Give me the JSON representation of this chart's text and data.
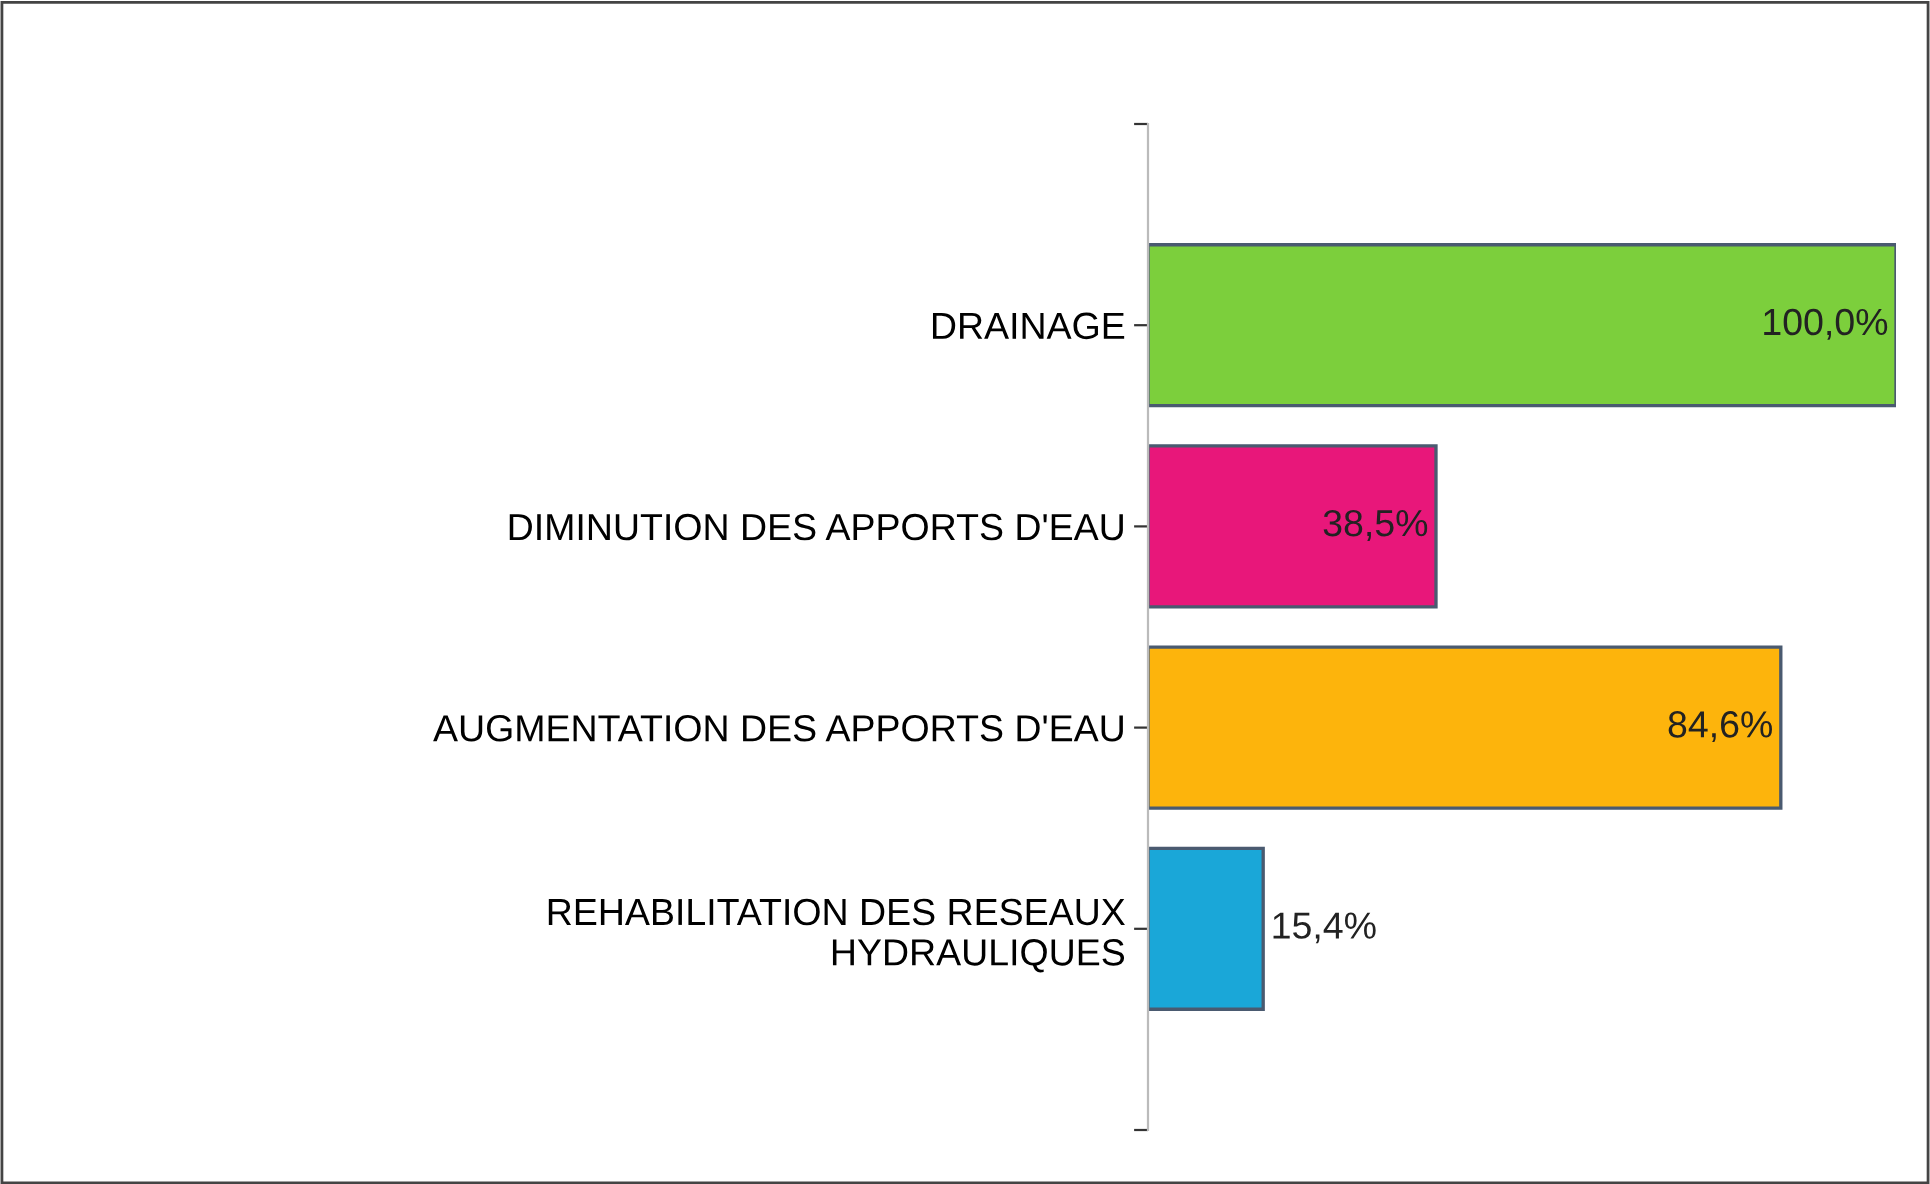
{
  "chart_data": {
    "type": "bar",
    "orientation": "horizontal",
    "categories": [
      "DRAINAGE",
      "DIMINUTION DES APPORTS D'EAU",
      "AUGMENTATION DES APPORTS D'EAU",
      "REHABILITATION DES RESEAUX\nHYDRAULIQUES"
    ],
    "values": [
      100.0,
      38.5,
      84.6,
      15.4
    ],
    "value_labels": [
      "100,0%",
      "38,5%",
      "84,6%",
      "15,4%"
    ],
    "colors": [
      "#7ccf3c",
      "#e8177a",
      "#fdb40c",
      "#1aa7d8"
    ],
    "grid": false,
    "legend": false
  }
}
